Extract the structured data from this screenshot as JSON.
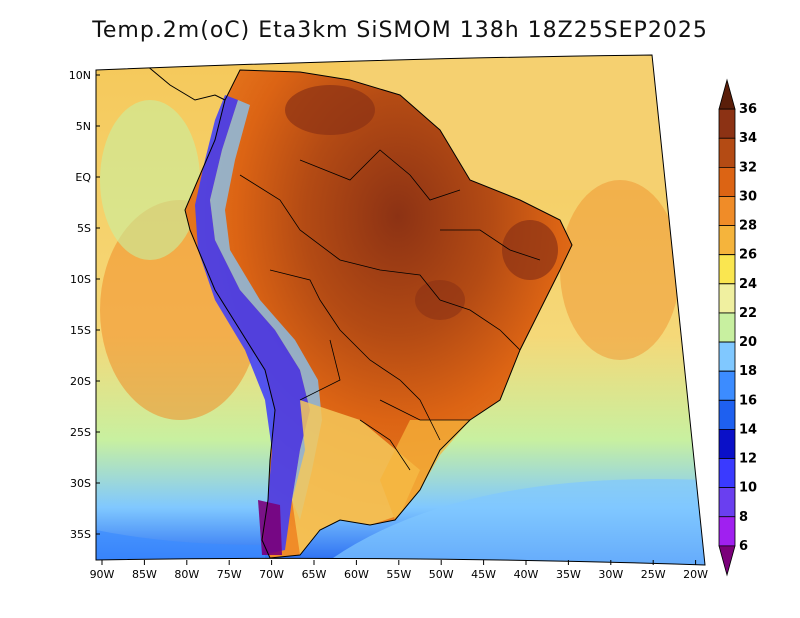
{
  "title": "Temp.2m(oC) Eta3km SiSMOM 138h 18Z25SEP2025",
  "map": {
    "variable": "2 m temperature",
    "units": "oC",
    "lat_ticks": [
      "10N",
      "5N",
      "EQ",
      "5S",
      "10S",
      "15S",
      "20S",
      "25S",
      "30S",
      "35S"
    ],
    "lon_ticks": [
      "90W",
      "85W",
      "80W",
      "75W",
      "70W",
      "65W",
      "60W",
      "55W",
      "50W",
      "45W",
      "40W",
      "35W",
      "30W",
      "25W",
      "20W"
    ],
    "lat_range": [
      -37.5,
      11.5
    ],
    "lon_range": [
      -91,
      -20
    ]
  },
  "colorbar": {
    "levels": [
      6,
      8,
      10,
      12,
      14,
      16,
      18,
      20,
      22,
      24,
      26,
      28,
      30,
      32,
      34,
      36
    ],
    "labels": [
      "6",
      "8",
      "10",
      "12",
      "14",
      "16",
      "18",
      "20",
      "22",
      "24",
      "26",
      "28",
      "30",
      "32",
      "34",
      "36"
    ],
    "colors": [
      "#7a007a",
      "#a020f0",
      "#6a3ff0",
      "#3a3aff",
      "#0a10c8",
      "#1e60f0",
      "#3c8cff",
      "#80c8ff",
      "#c8f0a0",
      "#f0f0a0",
      "#fae650",
      "#f5b43c",
      "#f08c28",
      "#dc6414",
      "#b44b14",
      "#8c3214",
      "#5a1e0a"
    ]
  },
  "colors": {
    "ocean_default": "#f5c85a",
    "land_hot": "#c0601e",
    "boundary": "#000000"
  }
}
